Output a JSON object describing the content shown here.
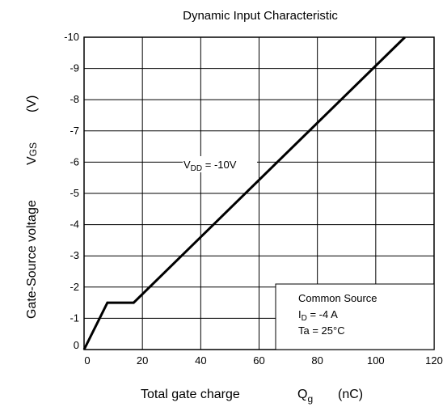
{
  "chart_data": {
    "type": "line",
    "title": "Dynamic Input Characteristic",
    "xlabel": {
      "main": "Total gate charge",
      "symbol": "Q",
      "subscript": "g",
      "unit": "(nC)"
    },
    "ylabel": {
      "main": "Gate-Source voltage",
      "symbol": "V",
      "subscript": "GS",
      "unit": "(V)"
    },
    "xlim": [
      0,
      120
    ],
    "ylim": [
      0,
      -10
    ],
    "grid": true,
    "x_ticks": [
      "0",
      "20",
      "40",
      "60",
      "80",
      "100",
      "120"
    ],
    "y_ticks": [
      "0",
      "-1",
      "-2",
      "-3",
      "-4",
      "-5",
      "-6",
      "-7",
      "-8",
      "-9",
      "-10"
    ],
    "series": [
      {
        "label": {
          "prefix": "V",
          "subscript": "DD",
          "suffix": " = -10V"
        },
        "x": [
          0,
          8,
          17,
          110
        ],
        "y": [
          0,
          -1.5,
          -1.5,
          -10
        ]
      }
    ],
    "annotation": {
      "line1": "Common Source",
      "line2": {
        "prefix": "I",
        "subscript": "D",
        "suffix": " = -4 A"
      },
      "line3": "Ta = 25°C"
    }
  }
}
